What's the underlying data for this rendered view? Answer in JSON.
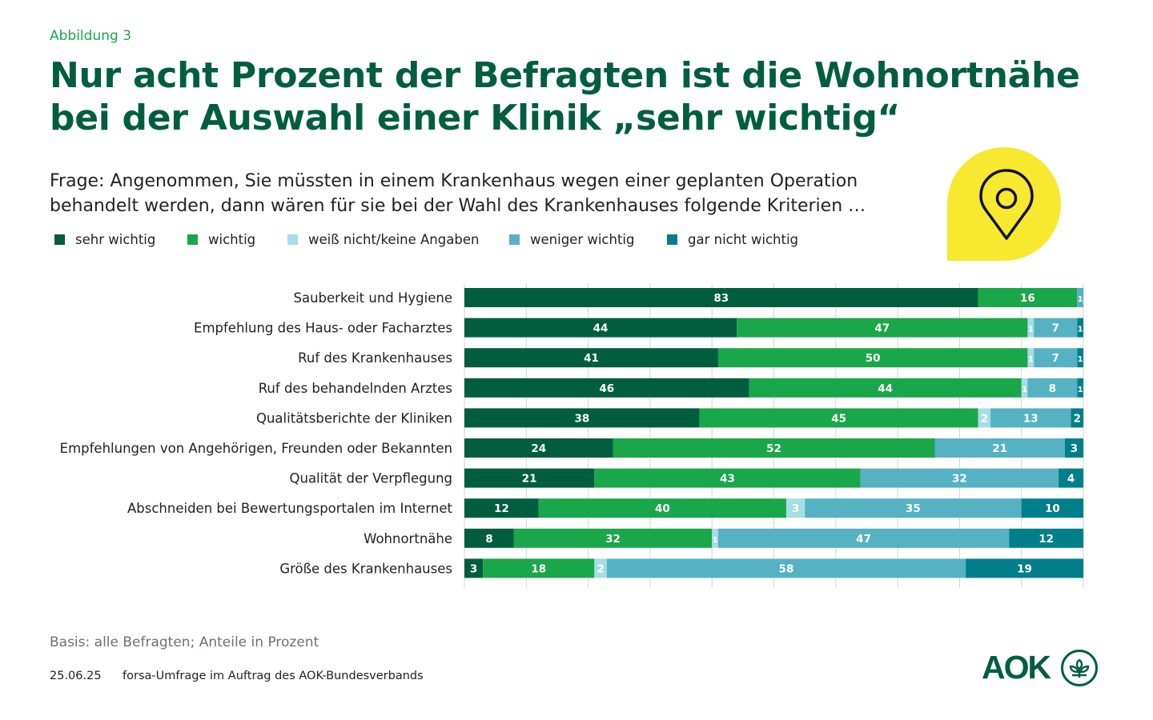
{
  "figure_label": "Abbildung 3",
  "headline": {
    "line1": "Nur acht Prozent der Befragten ist die Wohnortnähe",
    "line2": "bei der Auswahl einer Klinik „sehr wichtig“"
  },
  "question": {
    "line1": "Frage: Angenommen, Sie müssten in einem Krankenhaus wegen einer geplanten Operation",
    "line2": "behandelt werden, dann wären für sie bei der Wahl des Krankenhauses folgende Kriterien …"
  },
  "icons": {
    "pin": "location-pin-icon",
    "logo": "aok-tree-icon"
  },
  "colors": {
    "sehr_wichtig": "#005e3f",
    "wichtig": "#1aa64a",
    "weiss_nicht": "#a6dde6",
    "weniger_wichtig": "#55b2c3",
    "gar_nicht_wichtig": "#007f8a",
    "headline": "#005e3f",
    "accent_yellow": "#f6e930",
    "gridline": "#d6d6d6"
  },
  "chart_data": {
    "type": "bar",
    "orientation": "horizontal-stacked-100",
    "title": "Nur acht Prozent der Befragten ist die Wohnortnähe bei der Auswahl einer Klinik „sehr wichtig“",
    "unit": "Prozent",
    "xlim": [
      0,
      100
    ],
    "grid": true,
    "legend_position": "top-left",
    "categories": [
      "Sauberkeit und Hygiene",
      "Empfehlung des Haus- oder Facharztes",
      "Ruf des Krankenhauses",
      "Ruf des behandelnden Arztes",
      "Qualitätsberichte der Kliniken",
      "Empfehlungen von Angehörigen, Freunden oder Bekannten",
      "Qualität der Verpflegung",
      "Abschneiden bei Bewertungsportalen im Internet",
      "Wohnortnähe",
      "Größe des Krankenhauses"
    ],
    "series": [
      {
        "name": "sehr wichtig",
        "color": "#005e3f",
        "values": [
          83,
          44,
          41,
          46,
          38,
          24,
          21,
          12,
          8,
          3
        ]
      },
      {
        "name": "wichtig",
        "color": "#1aa64a",
        "values": [
          16,
          47,
          50,
          44,
          45,
          52,
          43,
          40,
          32,
          18
        ]
      },
      {
        "name": "weiß nicht/keine Angaben",
        "color": "#a6dde6",
        "values": [
          0,
          1,
          1,
          1,
          2,
          0,
          0,
          3,
          1,
          2
        ]
      },
      {
        "name": "weniger wichtig",
        "color": "#55b2c3",
        "values": [
          1,
          7,
          7,
          8,
          13,
          21,
          32,
          35,
          47,
          58
        ]
      },
      {
        "name": "gar nicht wichtig",
        "color": "#007f8a",
        "values": [
          0,
          1,
          1,
          1,
          2,
          3,
          4,
          10,
          12,
          19
        ]
      }
    ]
  },
  "footer": {
    "basis": "Basis: alle Befragten; Anteile in Prozent",
    "date": "25.06.25",
    "source": "forsa-Umfrage im Auftrag des AOK-Bundesverbands",
    "logo_text": "AOK"
  }
}
